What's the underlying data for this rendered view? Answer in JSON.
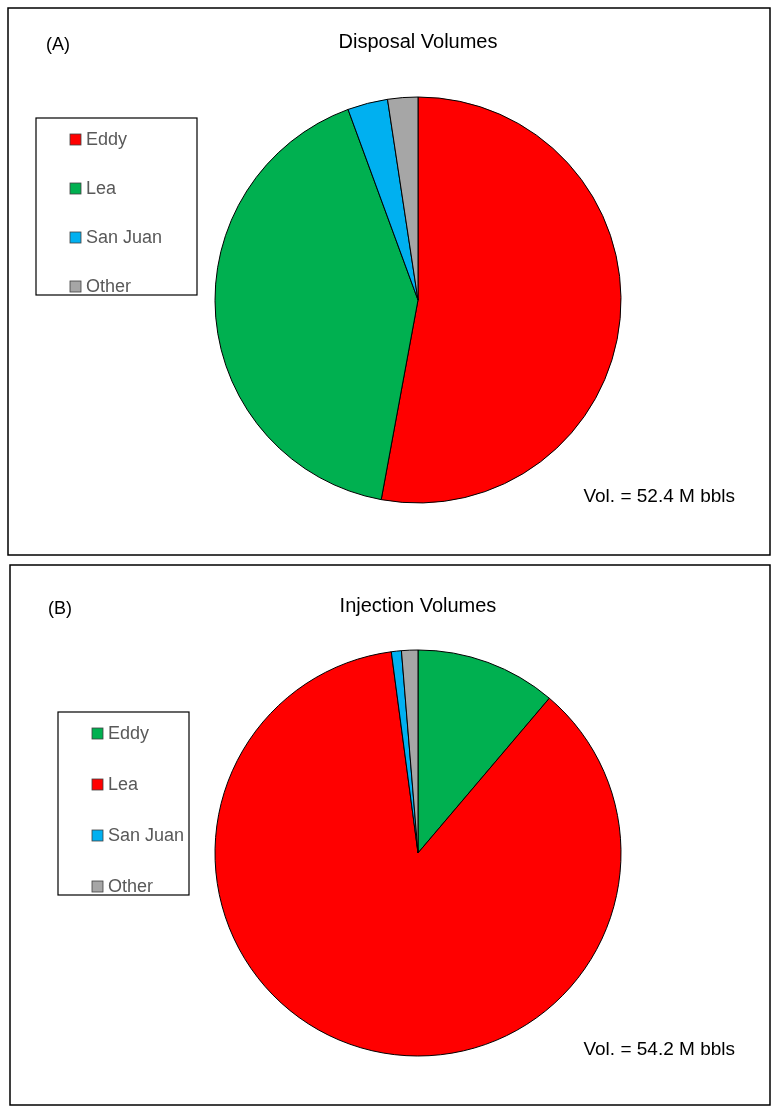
{
  "chart_data": [
    {
      "type": "pie",
      "title": "Disposal Volumes",
      "categories": [
        "Eddy",
        "Lea",
        "San Juan",
        "Other"
      ],
      "values": [
        52.9,
        41.5,
        3.2,
        2.4
      ],
      "colors": [
        "#ff0000",
        "#00b050",
        "#00b0f0",
        "#a6a6a6"
      ],
      "legend": "left",
      "annotations": [
        "(A)",
        "Vol. = 52.4 M bbls"
      ]
    },
    {
      "type": "pie",
      "title": "Injection Volumes",
      "categories": [
        "Eddy",
        "Lea",
        "San Juan",
        "Other"
      ],
      "values": [
        11.2,
        86.7,
        0.8,
        1.3
      ],
      "colors": [
        "#00b050",
        "#ff0000",
        "#00b0f0",
        "#a6a6a6"
      ],
      "legend": "left",
      "annotations": [
        "(B)",
        "Vol. = 54.2 M bbls"
      ]
    }
  ]
}
